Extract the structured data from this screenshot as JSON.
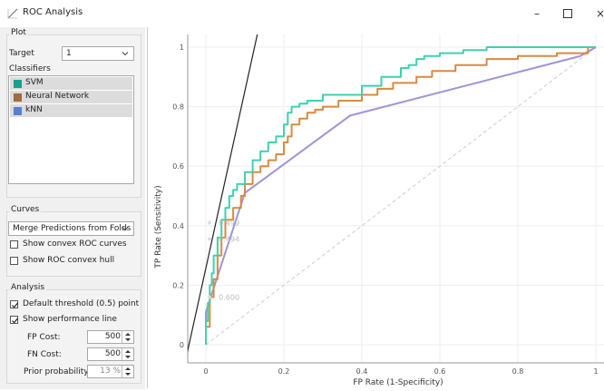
{
  "window": {
    "title": "ROC Analysis"
  },
  "plot_group": {
    "title": "Plot",
    "target_label": "Target",
    "target_value": "1",
    "classifiers_label": "Classifiers",
    "classifiers": [
      {
        "name": "SVM",
        "color": "#1a9e8f"
      },
      {
        "name": "Neural Network",
        "color": "#a06a3c"
      },
      {
        "name": "kNN",
        "color": "#5a7fcf"
      }
    ]
  },
  "curves_group": {
    "title": "Curves",
    "merge_value": "Merge Predictions from Folds",
    "show_convex_curves": "Show convex ROC curves",
    "show_convex_hull": "Show ROC convex hull"
  },
  "analysis_group": {
    "title": "Analysis",
    "default_threshold": "Default threshold (0.5) point",
    "show_perf_line": "Show performance line",
    "fp_cost_label": "FP Cost:",
    "fp_cost_value": "500",
    "fn_cost_label": "FN Cost:",
    "fn_cost_value": "500",
    "prior_label": "Prior probability:",
    "prior_value": "13 %"
  },
  "chart_data": {
    "type": "line",
    "xlabel": "FP Rate (1-Specificity)",
    "ylabel": "TP Rate (Sensitivity)",
    "xlim": [
      0,
      1
    ],
    "ylim": [
      0,
      1
    ],
    "xticks": [
      "0",
      "0.2",
      "0.4",
      "0.6",
      "0.8",
      "1"
    ],
    "yticks": [
      "0",
      "0.2",
      "0.4",
      "0.6",
      "0.8",
      "1"
    ],
    "grid": true,
    "threshold_labels": [
      {
        "text": "0.499",
        "x": 0.005,
        "y": 0.41
      },
      {
        "text": "0.494",
        "x": 0.005,
        "y": 0.355
      },
      {
        "text": "0.600",
        "x": 0.005,
        "y": 0.16
      }
    ],
    "series": [
      {
        "name": "SVM",
        "color": "#3fd1b0",
        "x": [
          0,
          0,
          0.005,
          0.005,
          0.01,
          0.01,
          0.015,
          0.015,
          0.02,
          0.02,
          0.03,
          0.03,
          0.04,
          0.04,
          0.05,
          0.05,
          0.06,
          0.06,
          0.07,
          0.07,
          0.08,
          0.08,
          0.1,
          0.1,
          0.12,
          0.12,
          0.14,
          0.14,
          0.16,
          0.16,
          0.18,
          0.18,
          0.2,
          0.2,
          0.21,
          0.21,
          0.22,
          0.22,
          0.24,
          0.24,
          0.26,
          0.26,
          0.3,
          0.3,
          0.4,
          0.4,
          0.45,
          0.45,
          0.5,
          0.5,
          0.52,
          0.52,
          0.54,
          0.54,
          0.56,
          0.56,
          0.6,
          0.6,
          0.66,
          0.66,
          0.72,
          0.72,
          0.8,
          0.8,
          1.0
        ],
        "y": [
          0,
          0.08,
          0.08,
          0.14,
          0.14,
          0.2,
          0.2,
          0.24,
          0.24,
          0.3,
          0.3,
          0.36,
          0.36,
          0.42,
          0.42,
          0.46,
          0.46,
          0.5,
          0.5,
          0.52,
          0.52,
          0.54,
          0.54,
          0.58,
          0.58,
          0.62,
          0.62,
          0.65,
          0.65,
          0.68,
          0.68,
          0.7,
          0.7,
          0.74,
          0.74,
          0.78,
          0.78,
          0.8,
          0.8,
          0.81,
          0.81,
          0.82,
          0.82,
          0.84,
          0.84,
          0.87,
          0.87,
          0.9,
          0.9,
          0.93,
          0.93,
          0.94,
          0.94,
          0.96,
          0.96,
          0.97,
          0.97,
          0.98,
          0.98,
          0.99,
          0.99,
          1.0,
          1.0,
          1.0,
          1.0
        ]
      },
      {
        "name": "Neural Network",
        "color": "#d88a42",
        "x": [
          0,
          0,
          0.01,
          0.01,
          0.02,
          0.02,
          0.03,
          0.03,
          0.04,
          0.04,
          0.05,
          0.05,
          0.07,
          0.07,
          0.09,
          0.09,
          0.1,
          0.1,
          0.12,
          0.12,
          0.14,
          0.14,
          0.16,
          0.16,
          0.18,
          0.18,
          0.2,
          0.2,
          0.21,
          0.21,
          0.22,
          0.22,
          0.24,
          0.24,
          0.26,
          0.26,
          0.28,
          0.28,
          0.3,
          0.3,
          0.34,
          0.34,
          0.4,
          0.4,
          0.44,
          0.44,
          0.48,
          0.48,
          0.54,
          0.54,
          0.58,
          0.58,
          0.64,
          0.64,
          0.72,
          0.72,
          0.8,
          0.8,
          0.9,
          0.9,
          0.98,
          0.98,
          1.0
        ],
        "y": [
          0,
          0.06,
          0.06,
          0.16,
          0.16,
          0.22,
          0.22,
          0.3,
          0.3,
          0.36,
          0.36,
          0.42,
          0.42,
          0.46,
          0.46,
          0.5,
          0.5,
          0.54,
          0.54,
          0.58,
          0.58,
          0.6,
          0.6,
          0.62,
          0.62,
          0.64,
          0.64,
          0.68,
          0.68,
          0.7,
          0.7,
          0.74,
          0.74,
          0.76,
          0.76,
          0.78,
          0.78,
          0.79,
          0.79,
          0.8,
          0.8,
          0.82,
          0.82,
          0.84,
          0.84,
          0.86,
          0.86,
          0.88,
          0.88,
          0.9,
          0.9,
          0.92,
          0.92,
          0.94,
          0.94,
          0.96,
          0.96,
          0.97,
          0.97,
          0.98,
          0.98,
          1.0,
          1.0
        ]
      },
      {
        "name": "kNN",
        "color": "#9d94d8",
        "x": [
          0,
          0,
          0.1,
          0.37,
          0.96,
          1.0
        ],
        "y": [
          0,
          0.11,
          0.51,
          0.77,
          0.97,
          1.0
        ]
      }
    ],
    "diagonal": {
      "color": "#cccccc"
    },
    "performance_line": {
      "color": "#222222",
      "x": [
        -0.05,
        0.15
      ],
      "y": [
        -0.04,
        1.15
      ]
    }
  }
}
